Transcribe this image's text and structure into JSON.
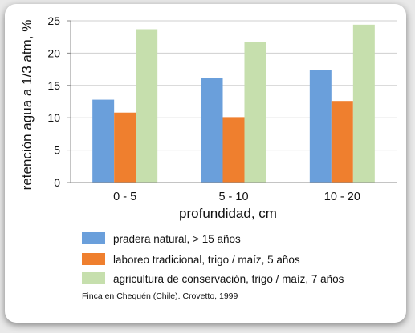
{
  "chart_data": {
    "type": "bar",
    "xlabel": "profundidad,  cm",
    "ylabel": "retención agua a 1/3 atm,  %",
    "ylim": [
      0,
      25
    ],
    "yticks": [
      0,
      5,
      10,
      15,
      20,
      25
    ],
    "categories": [
      "0 - 5",
      "5 - 10",
      "10 - 20"
    ],
    "grid": "horizontal",
    "legend_position": "bottom",
    "series": [
      {
        "name": "pradera natural, > 15 años",
        "color": "#6a9fdb",
        "values": [
          12.8,
          16.1,
          17.4
        ]
      },
      {
        "name": "laboreo tradicional, trigo / maíz, 5 años",
        "color": "#ef7f2e",
        "values": [
          10.8,
          10.1,
          12.6
        ]
      },
      {
        "name": "agricultura de conservación, trigo / maíz, 7 años",
        "color": "#c6dfad",
        "values": [
          23.7,
          21.7,
          24.4
        ]
      }
    ],
    "source_note": "Finca en Chequén (Chile). Crovetto, 1999"
  }
}
